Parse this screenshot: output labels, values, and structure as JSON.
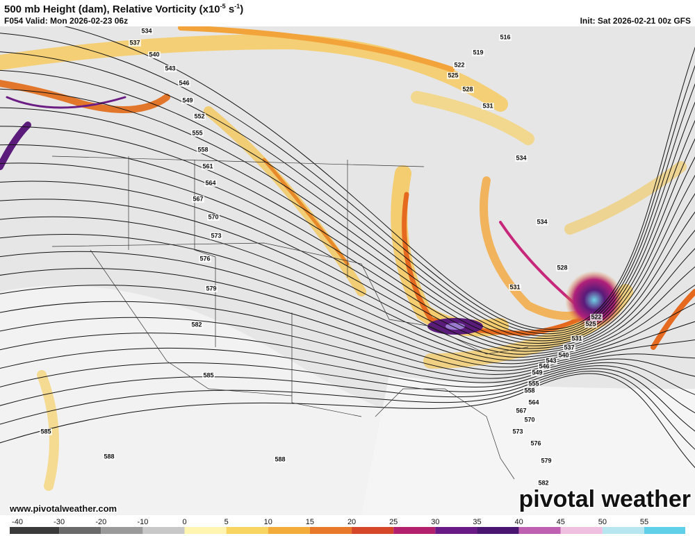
{
  "header": {
    "title": {
      "main": "500 mb Height (dam), Relative Vorticity (x10",
      "exp1": "-5",
      "unit": " s",
      "exp2": "-1",
      "close": ")"
    },
    "valid": "F054 Valid: Mon 2026-02-23 06z",
    "init": "Init: Sat 2026-02-21 00z GFS"
  },
  "contour_labels": [
    534,
    537,
    540,
    543,
    546,
    549,
    552,
    555,
    558,
    561,
    564,
    567,
    570,
    573,
    576,
    579,
    582,
    585,
    585,
    588,
    588,
    516,
    519,
    522,
    525,
    528,
    531,
    534,
    534,
    528,
    531,
    522,
    525,
    531,
    537,
    540,
    543,
    546,
    549,
    555,
    558,
    564,
    567,
    570,
    573,
    576,
    579,
    582
  ],
  "colorbar": {
    "ticks": [
      -40,
      -30,
      -20,
      -10,
      0,
      5,
      10,
      15,
      20,
      25,
      30,
      35,
      40,
      45,
      50,
      55
    ]
  },
  "footer": {
    "website": "www.pivotalweather.com",
    "logo": "pivotal weather"
  }
}
